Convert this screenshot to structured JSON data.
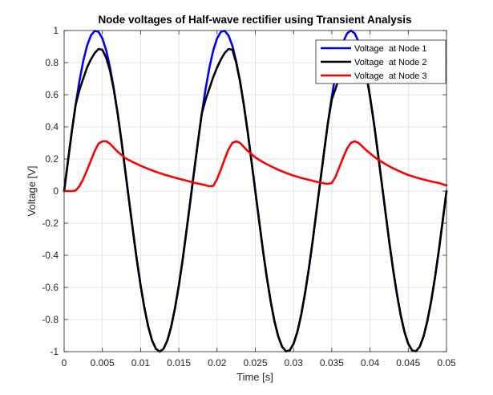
{
  "chart_data": {
    "type": "line",
    "title": "Node voltages of Half-wave rectifier using Transient Analysis",
    "xlabel": "Time [s]",
    "ylabel": "Voltage [V]",
    "xlim": [
      0,
      0.05
    ],
    "ylim": [
      -1,
      1
    ],
    "xticks": [
      0,
      0.005,
      0.01,
      0.015,
      0.02,
      0.025,
      0.03,
      0.035,
      0.04,
      0.045,
      0.05
    ],
    "xtick_labels": [
      "0",
      "0.005",
      "0.01",
      "0.015",
      "0.02",
      "0.025",
      "0.03",
      "0.035",
      "0.04",
      "0.045",
      "0.05"
    ],
    "yticks": [
      -1,
      -0.8,
      -0.6,
      -0.4,
      -0.2,
      0,
      0.2,
      0.4,
      0.6,
      0.8,
      1
    ],
    "ytick_labels": [
      "-1",
      "-0.8",
      "-0.6",
      "-0.4",
      "-0.2",
      "0",
      "0.2",
      "0.4",
      "0.6",
      "0.8",
      "1"
    ],
    "grid": true,
    "legend_position": "top-right",
    "series": [
      {
        "name": "Voltage  at Node 1",
        "color": "#0000ff",
        "x": [
          0,
          0.0005,
          0.001,
          0.0015,
          0.002,
          0.0025,
          0.003,
          0.0035,
          0.004,
          0.0045,
          0.005,
          0.0055,
          0.006,
          0.0065,
          0.007,
          0.0075,
          0.008,
          0.0085,
          0.009,
          0.0095,
          0.01,
          0.0105,
          0.011,
          0.0115,
          0.012,
          0.0125,
          0.013,
          0.0135,
          0.014,
          0.0145,
          0.015,
          0.0155,
          0.016,
          0.0165,
          0.017,
          0.0175,
          0.018,
          0.0185,
          0.019,
          0.0195,
          0.02,
          0.0205,
          0.021,
          0.0215,
          0.022,
          0.0225,
          0.023,
          0.0235,
          0.024,
          0.0245,
          0.025,
          0.0255,
          0.026,
          0.0265,
          0.027,
          0.0275,
          0.028,
          0.0285,
          0.029,
          0.0295,
          0.03,
          0.0305,
          0.031,
          0.0315,
          0.032,
          0.0325,
          0.033,
          0.0335,
          0.034,
          0.0345,
          0.035,
          0.0355,
          0.036,
          0.0365,
          0.037,
          0.0375,
          0.038,
          0.0385,
          0.039,
          0.0395,
          0.04,
          0.0405,
          0.041,
          0.0415,
          0.042,
          0.0425,
          0.043,
          0.0435,
          0.044,
          0.0445,
          0.045,
          0.0455,
          0.046,
          0.0465,
          0.047,
          0.0475,
          0.048,
          0.0485,
          0.049,
          0.0495,
          0.05
        ],
        "y": [
          0,
          0.187,
          0.368,
          0.536,
          0.685,
          0.809,
          0.905,
          0.969,
          0.998,
          0.992,
          0.951,
          0.876,
          0.771,
          0.637,
          0.482,
          0.309,
          0.125,
          -0.063,
          -0.249,
          -0.426,
          -0.588,
          -0.729,
          -0.844,
          -0.93,
          -0.982,
          -1.0,
          -0.982,
          -0.93,
          -0.844,
          -0.729,
          -0.588,
          -0.426,
          -0.249,
          -0.063,
          0.125,
          0.309,
          0.482,
          0.637,
          0.771,
          0.876,
          0.951,
          0.992,
          0.998,
          0.969,
          0.905,
          0.809,
          0.685,
          0.536,
          0.368,
          0.187,
          0,
          -0.187,
          -0.368,
          -0.536,
          -0.685,
          -0.809,
          -0.905,
          -0.969,
          -0.998,
          -0.992,
          -0.951,
          -0.876,
          -0.771,
          -0.637,
          -0.482,
          -0.309,
          -0.125,
          0.063,
          0.249,
          0.426,
          0.588,
          0.729,
          0.844,
          0.93,
          0.982,
          1.0,
          0.982,
          0.93,
          0.844,
          0.729,
          0.588,
          0.426,
          0.249,
          0.063,
          -0.125,
          -0.309,
          -0.482,
          -0.637,
          -0.771,
          -0.876,
          -0.951,
          -0.992,
          -0.998,
          -0.969,
          -0.905,
          -0.809,
          -0.685,
          -0.536,
          -0.368,
          -0.187,
          0
        ]
      },
      {
        "name": "Voltage  at Node 2",
        "color": "#000000",
        "x": [
          0,
          0.0005,
          0.001,
          0.0015,
          0.002,
          0.0025,
          0.003,
          0.0035,
          0.004,
          0.0045,
          0.005,
          0.0055,
          0.006,
          0.0065,
          0.007,
          0.0075,
          0.008,
          0.0085,
          0.009,
          0.0095,
          0.01,
          0.0105,
          0.011,
          0.0115,
          0.012,
          0.0125,
          0.013,
          0.0135,
          0.014,
          0.0145,
          0.015,
          0.0155,
          0.016,
          0.0165,
          0.017,
          0.0175,
          0.018,
          0.0185,
          0.019,
          0.0195,
          0.02,
          0.0205,
          0.021,
          0.0215,
          0.022,
          0.0225,
          0.023,
          0.0235,
          0.024,
          0.0245,
          0.025,
          0.0255,
          0.026,
          0.0265,
          0.027,
          0.0275,
          0.028,
          0.0285,
          0.029,
          0.0295,
          0.03,
          0.0305,
          0.031,
          0.0315,
          0.032,
          0.0325,
          0.033,
          0.0335,
          0.034,
          0.0345,
          0.035,
          0.0355,
          0.036,
          0.0365,
          0.037,
          0.0375,
          0.038,
          0.0385,
          0.039,
          0.0395,
          0.04,
          0.0405,
          0.041,
          0.0415,
          0.042,
          0.0425,
          0.043,
          0.0435,
          0.044,
          0.0445,
          0.045,
          0.0455,
          0.046,
          0.0465,
          0.047,
          0.0475,
          0.048,
          0.0485,
          0.049,
          0.0495,
          0.05
        ],
        "y": [
          0,
          0.187,
          0.368,
          0.536,
          0.63,
          0.7,
          0.77,
          0.82,
          0.86,
          0.885,
          0.88,
          0.83,
          0.75,
          0.63,
          0.482,
          0.309,
          0.125,
          -0.063,
          -0.249,
          -0.426,
          -0.588,
          -0.729,
          -0.844,
          -0.93,
          -0.982,
          -1.0,
          -0.982,
          -0.93,
          -0.844,
          -0.729,
          -0.588,
          -0.426,
          -0.249,
          -0.063,
          0.125,
          0.309,
          0.482,
          0.57,
          0.64,
          0.71,
          0.77,
          0.82,
          0.86,
          0.885,
          0.88,
          0.8,
          0.685,
          0.536,
          0.368,
          0.187,
          0,
          -0.187,
          -0.368,
          -0.536,
          -0.685,
          -0.809,
          -0.905,
          -0.969,
          -0.998,
          -0.992,
          -0.951,
          -0.876,
          -0.771,
          -0.637,
          -0.482,
          -0.309,
          -0.125,
          0.063,
          0.249,
          0.426,
          0.57,
          0.64,
          0.71,
          0.77,
          0.82,
          0.86,
          0.885,
          0.88,
          0.82,
          0.729,
          0.588,
          0.426,
          0.249,
          0.063,
          -0.125,
          -0.309,
          -0.482,
          -0.637,
          -0.771,
          -0.876,
          -0.951,
          -0.992,
          -0.998,
          -0.969,
          -0.905,
          -0.809,
          -0.685,
          -0.536,
          -0.368,
          -0.187,
          0
        ]
      },
      {
        "name": "Voltage  at Node 3",
        "color": "#ff0000",
        "x": [
          0,
          0.001,
          0.0015,
          0.002,
          0.0025,
          0.003,
          0.0035,
          0.004,
          0.0045,
          0.005,
          0.0055,
          0.006,
          0.0065,
          0.007,
          0.0075,
          0.008,
          0.009,
          0.01,
          0.011,
          0.012,
          0.013,
          0.014,
          0.015,
          0.016,
          0.017,
          0.018,
          0.0185,
          0.019,
          0.0195,
          0.02,
          0.0205,
          0.021,
          0.0215,
          0.022,
          0.0225,
          0.023,
          0.0235,
          0.024,
          0.025,
          0.026,
          0.027,
          0.028,
          0.029,
          0.03,
          0.031,
          0.032,
          0.033,
          0.034,
          0.0345,
          0.035,
          0.0355,
          0.036,
          0.0365,
          0.037,
          0.0375,
          0.038,
          0.0385,
          0.039,
          0.0395,
          0.04,
          0.0405,
          0.041,
          0.042,
          0.043,
          0.044,
          0.045,
          0.046,
          0.047,
          0.048,
          0.049,
          0.05
        ],
        "y": [
          0,
          0,
          0.003,
          0.03,
          0.075,
          0.13,
          0.19,
          0.25,
          0.295,
          0.31,
          0.31,
          0.295,
          0.27,
          0.245,
          0.225,
          0.205,
          0.18,
          0.158,
          0.138,
          0.12,
          0.104,
          0.09,
          0.077,
          0.065,
          0.052,
          0.042,
          0.036,
          0.03,
          0.032,
          0.075,
          0.135,
          0.2,
          0.26,
          0.3,
          0.31,
          0.3,
          0.275,
          0.25,
          0.21,
          0.18,
          0.155,
          0.133,
          0.113,
          0.096,
          0.082,
          0.07,
          0.058,
          0.048,
          0.045,
          0.05,
          0.09,
          0.15,
          0.21,
          0.265,
          0.3,
          0.31,
          0.3,
          0.278,
          0.255,
          0.235,
          0.215,
          0.198,
          0.168,
          0.142,
          0.12,
          0.1,
          0.085,
          0.072,
          0.06,
          0.05,
          0.035
        ]
      }
    ]
  }
}
